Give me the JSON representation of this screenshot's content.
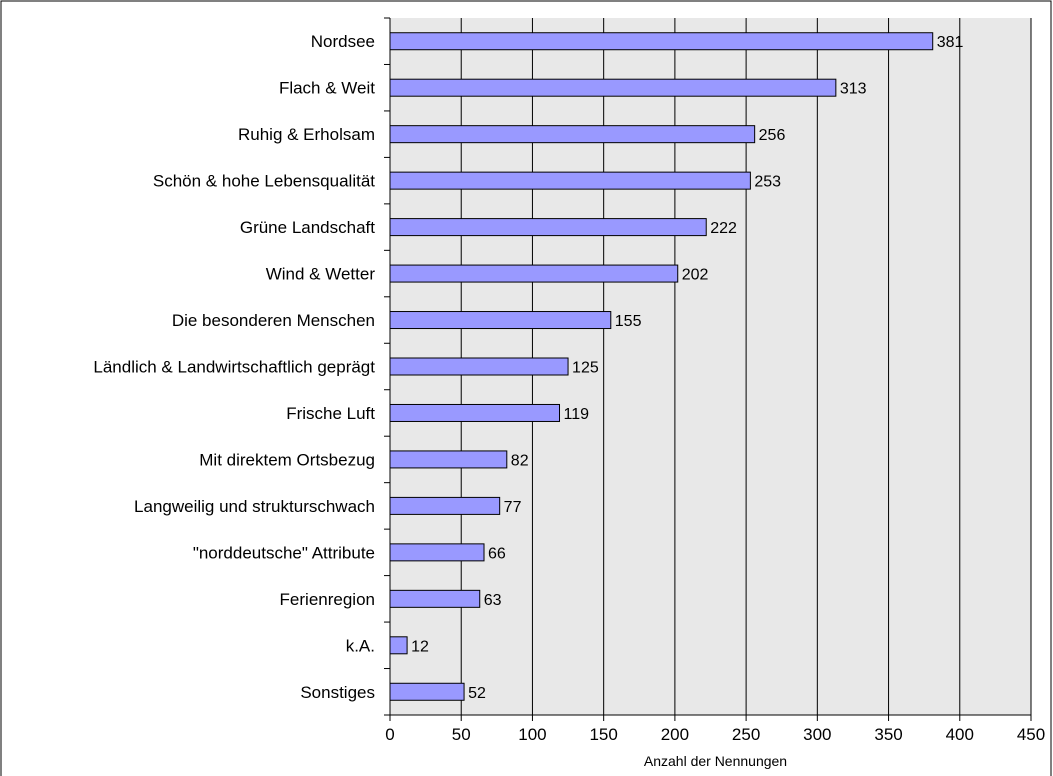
{
  "chart_data": {
    "type": "bar",
    "orientation": "horizontal",
    "categories": [
      "Nordsee",
      "Flach & Weit",
      "Ruhig & Erholsam",
      "Schön & hohe Lebensqualität",
      "Grüne Landschaft",
      "Wind & Wetter",
      "Die besonderen Menschen",
      "Ländlich & Landwirtschaftlich geprägt",
      "Frische Luft",
      "Mit direktem Ortsbezug",
      "Langweilig und strukturschwach",
      "\"norddeutsche\" Attribute",
      "Ferienregion",
      "k.A.",
      "Sonstiges"
    ],
    "values": [
      381,
      313,
      256,
      253,
      222,
      202,
      155,
      125,
      119,
      82,
      77,
      66,
      63,
      12,
      52
    ],
    "value_labels": [
      "381",
      "313",
      "256",
      "253",
      "222",
      "202",
      "155",
      "125",
      "119",
      "82",
      "77",
      "66",
      "63",
      "12",
      "52"
    ],
    "xlabel": "Anzahl der Nennungen",
    "ylabel": "",
    "xlim": [
      0,
      450
    ],
    "xticks": [
      0,
      50,
      100,
      150,
      200,
      250,
      300,
      350,
      400,
      450
    ],
    "xtick_labels": [
      "0",
      "50",
      "100",
      "150",
      "200",
      "250",
      "300",
      "350",
      "400",
      "450"
    ],
    "grid": "vertical",
    "legend": "none",
    "colors": {
      "bar_fill": "#9999ff",
      "bar_stroke": "#000000",
      "plot_background": "#e8e8e8",
      "gridline": "#000000",
      "border": "#000000"
    }
  }
}
